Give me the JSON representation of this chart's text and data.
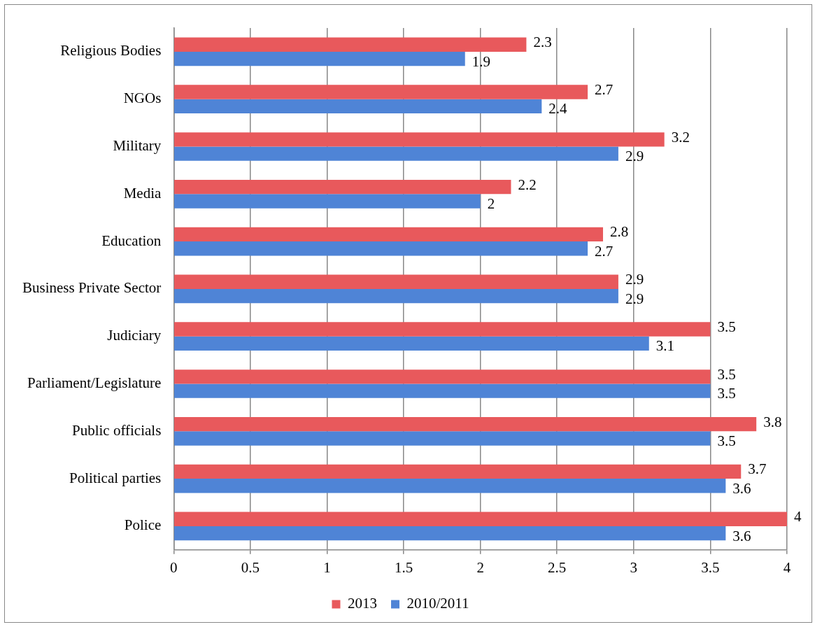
{
  "chart_data": {
    "type": "bar",
    "orientation": "horizontal",
    "categories": [
      "Religious Bodies",
      "NGOs",
      "Military",
      "Media",
      "Education",
      "Business Private Sector",
      "Judiciary",
      "Parliament/Legislature",
      "Public officials",
      "Political parties",
      "Police"
    ],
    "series": [
      {
        "name": "2013",
        "color": "#e8595c",
        "values": [
          2.3,
          2.7,
          3.2,
          2.2,
          2.8,
          2.9,
          3.5,
          3.5,
          3.8,
          3.7,
          4
        ]
      },
      {
        "name": "2010/2011",
        "color": "#4f84d6",
        "values": [
          1.9,
          2.4,
          2.9,
          2,
          2.7,
          2.9,
          3.1,
          3.5,
          3.5,
          3.6,
          3.6
        ]
      }
    ],
    "xlim": [
      0,
      4
    ],
    "xticks": [
      0,
      0.5,
      1,
      1.5,
      2,
      2.5,
      3,
      3.5,
      4
    ],
    "grid": "x",
    "legend": "bottom",
    "data_labels": true
  }
}
